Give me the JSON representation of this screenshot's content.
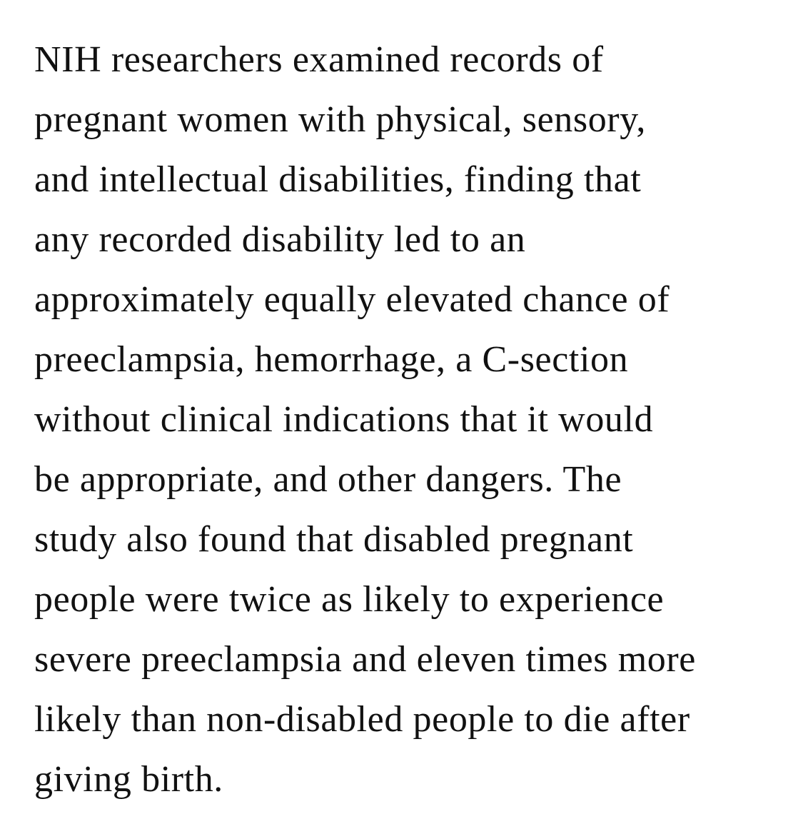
{
  "article": {
    "lines": [
      "NIH researchers examined records of",
      "pregnant women with physical, sensory,",
      "and intellectual disabilities, finding that",
      "any recorded disability led to an",
      "approximately equally elevated chance of",
      "preeclampsia, hemorrhage, a C-section",
      "without clinical indications that it would",
      "be appropriate, and other dangers. The",
      "study also found that disabled pregnant",
      "people were twice as likely to experience",
      "severe preeclampsia and eleven times more",
      "likely than non-disabled people to die after",
      "giving birth."
    ]
  }
}
